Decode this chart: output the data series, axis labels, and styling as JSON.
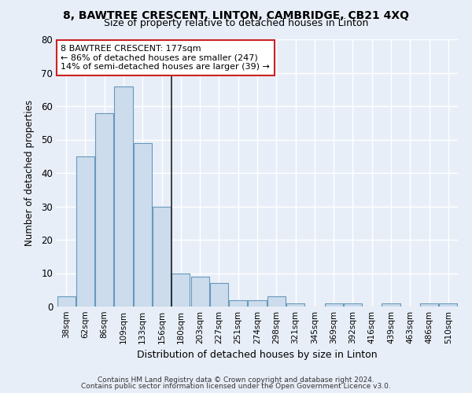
{
  "title": "8, BAWTREE CRESCENT, LINTON, CAMBRIDGE, CB21 4XQ",
  "subtitle": "Size of property relative to detached houses in Linton",
  "xlabel": "Distribution of detached houses by size in Linton",
  "ylabel": "Number of detached properties",
  "bar_color": "#ccdcec",
  "bar_edge_color": "#6699bb",
  "background_color": "#e8eef8",
  "grid_color": "#ffffff",
  "categories": [
    "38sqm",
    "62sqm",
    "86sqm",
    "109sqm",
    "133sqm",
    "156sqm",
    "180sqm",
    "203sqm",
    "227sqm",
    "251sqm",
    "274sqm",
    "298sqm",
    "321sqm",
    "345sqm",
    "369sqm",
    "392sqm",
    "416sqm",
    "439sqm",
    "463sqm",
    "486sqm",
    "510sqm"
  ],
  "values": [
    3,
    45,
    58,
    66,
    49,
    30,
    10,
    9,
    7,
    2,
    2,
    3,
    1,
    0,
    1,
    1,
    0,
    1,
    0,
    1,
    1
  ],
  "ylim": [
    0,
    80
  ],
  "yticks": [
    0,
    10,
    20,
    30,
    40,
    50,
    60,
    70,
    80
  ],
  "annotation_line1": "8 BAWTREE CRESCENT: 177sqm",
  "annotation_line2": "← 86% of detached houses are smaller (247)",
  "annotation_line3": "14% of semi-detached houses are larger (39) →",
  "annotation_box_color": "#ffffff",
  "annotation_box_edge": "#cc2222",
  "vline_x_idx": 5.5,
  "footer1": "Contains HM Land Registry data © Crown copyright and database right 2024.",
  "footer2": "Contains public sector information licensed under the Open Government Licence v3.0."
}
